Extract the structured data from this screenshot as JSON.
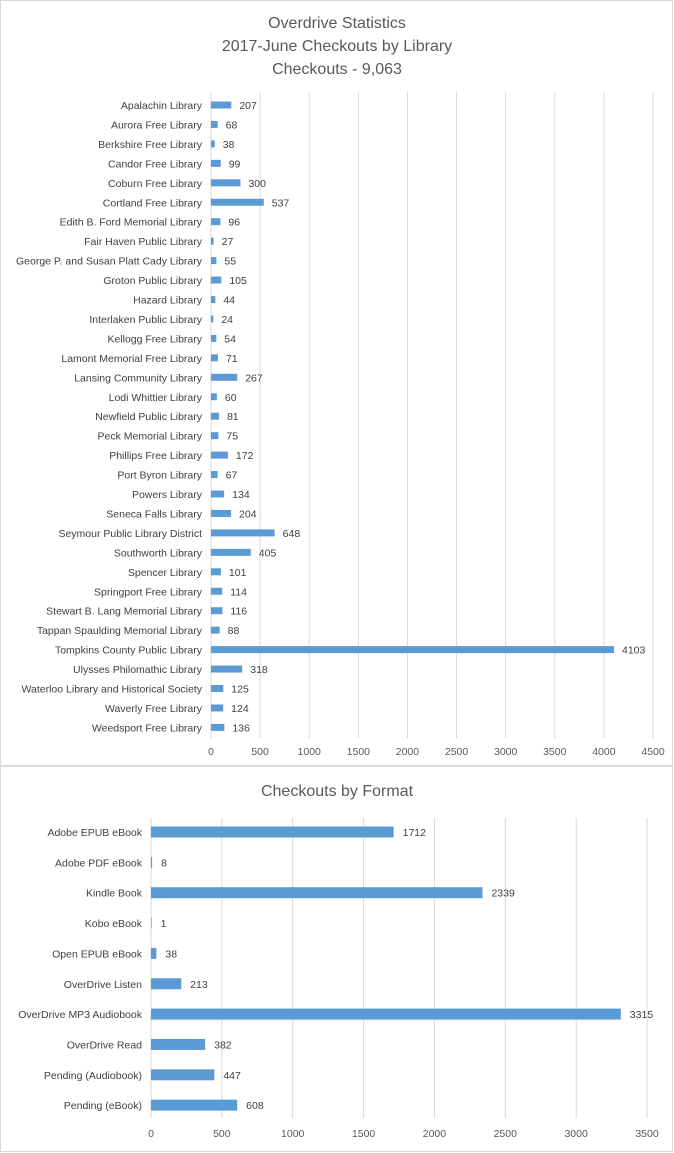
{
  "chart_data": [
    {
      "type": "bar",
      "orientation": "horizontal",
      "title": [
        "Overdrive Statistics",
        "2017-June Checkouts by Library",
        "Checkouts - 9,063"
      ],
      "categories": [
        "Apalachin Library",
        "Aurora Free Library",
        "Berkshire Free Library",
        "Candor Free Library",
        "Coburn Free Library",
        "Cortland Free Library",
        "Edith B. Ford Memorial Library",
        "Fair Haven Public Library",
        "George P. and Susan Platt Cady Library",
        "Groton Public Library",
        "Hazard Library",
        "Interlaken Public Library",
        "Kellogg Free Library",
        "Lamont Memorial Free Library",
        "Lansing Community Library",
        "Lodi Whittier Library",
        "Newfield Public Library",
        "Peck Memorial Library",
        "Phillips Free Library",
        "Port Byron Library",
        "Powers Library",
        "Seneca Falls Library",
        "Seymour Public Library District",
        "Southworth Library",
        "Spencer Library",
        "Springport Free Library",
        "Stewart B. Lang Memorial Library",
        "Tappan Spaulding Memorial Library",
        "Tompkins County Public Library",
        "Ulysses Philomathic Library",
        "Waterloo Library and Historical Society",
        "Waverly Free Library",
        "Weedsport Free Library"
      ],
      "values": [
        207,
        68,
        38,
        99,
        300,
        537,
        96,
        27,
        55,
        105,
        44,
        24,
        54,
        71,
        267,
        60,
        81,
        75,
        172,
        67,
        134,
        204,
        648,
        405,
        101,
        114,
        116,
        88,
        4103,
        318,
        125,
        124,
        136
      ],
      "ticks": [
        "0",
        "500",
        "1000",
        "1500",
        "2000",
        "2500",
        "3000",
        "3500",
        "4000",
        "4500"
      ],
      "xlim": [
        0,
        4500
      ],
      "grid": true,
      "color": "#5b9bd5"
    },
    {
      "type": "bar",
      "orientation": "horizontal",
      "title": [
        "Checkouts by Format"
      ],
      "categories": [
        "Adobe EPUB eBook",
        "Adobe PDF eBook",
        "Kindle Book",
        "Kobo eBook",
        "Open EPUB eBook",
        "OverDrive Listen",
        "OverDrive MP3 Audiobook",
        "OverDrive Read",
        "Pending (Audiobook)",
        "Pending (eBook)"
      ],
      "values": [
        1712,
        8,
        2339,
        1,
        38,
        213,
        3315,
        382,
        447,
        608
      ],
      "ticks": [
        "0",
        "500",
        "1000",
        "1500",
        "2000",
        "2500",
        "3000",
        "3500"
      ],
      "xlim": [
        0,
        3500
      ],
      "grid": true,
      "color": "#5b9bd5"
    }
  ]
}
